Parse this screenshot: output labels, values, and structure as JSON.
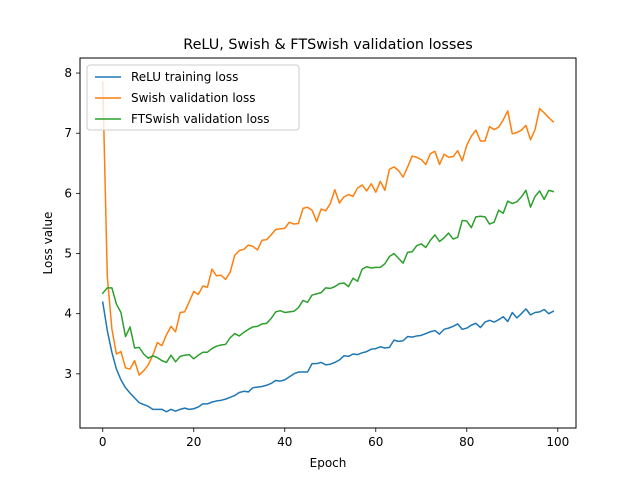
{
  "chart_data": {
    "type": "line",
    "title": "ReLU, Swish & FTSwish validation losses",
    "xlabel": "Epoch",
    "ylabel": "Loss value",
    "xlim": [
      -5,
      104
    ],
    "ylim": [
      2.1,
      8.25
    ],
    "xticks": [
      0,
      20,
      40,
      60,
      80,
      100
    ],
    "yticks": [
      3,
      4,
      5,
      6,
      7,
      8
    ],
    "legend_position": "top-left",
    "grid": false,
    "series": [
      {
        "name": "ReLU training loss",
        "color": "#1f77b4",
        "values": [
          4.19,
          3.72,
          3.36,
          3.08,
          2.9,
          2.77,
          2.68,
          2.6,
          2.52,
          2.49,
          2.46,
          2.41,
          2.41,
          2.41,
          2.37,
          2.41,
          2.38,
          2.41,
          2.43,
          2.41,
          2.42,
          2.45,
          2.5,
          2.5,
          2.53,
          2.55,
          2.56,
          2.58,
          2.61,
          2.64,
          2.69,
          2.71,
          2.7,
          2.77,
          2.78,
          2.79,
          2.81,
          2.84,
          2.89,
          2.88,
          2.9,
          2.95,
          3.0,
          3.03,
          3.03,
          3.03,
          3.17,
          3.17,
          3.19,
          3.15,
          3.16,
          3.19,
          3.23,
          3.3,
          3.29,
          3.33,
          3.32,
          3.35,
          3.37,
          3.41,
          3.42,
          3.45,
          3.43,
          3.44,
          3.56,
          3.54,
          3.55,
          3.62,
          3.61,
          3.63,
          3.64,
          3.67,
          3.7,
          3.72,
          3.66,
          3.74,
          3.76,
          3.79,
          3.83,
          3.74,
          3.76,
          3.81,
          3.84,
          3.77,
          3.86,
          3.89,
          3.86,
          3.9,
          3.95,
          3.87,
          4.02,
          3.93,
          4.0,
          4.08,
          3.98,
          4.02,
          4.03,
          4.07,
          4.0,
          4.04
        ]
      },
      {
        "name": "Swish validation loss",
        "color": "#ff7f0e",
        "values": [
          7.85,
          4.62,
          3.75,
          3.33,
          3.37,
          3.1,
          3.08,
          3.22,
          2.98,
          3.05,
          3.15,
          3.31,
          3.52,
          3.47,
          3.65,
          3.79,
          3.7,
          4.02,
          4.03,
          4.2,
          4.37,
          4.32,
          4.46,
          4.44,
          4.74,
          4.63,
          4.64,
          4.57,
          4.69,
          4.97,
          5.05,
          5.07,
          5.14,
          5.12,
          5.06,
          5.22,
          5.23,
          5.31,
          5.4,
          5.41,
          5.42,
          5.52,
          5.49,
          5.5,
          5.75,
          5.77,
          5.72,
          5.53,
          5.74,
          5.71,
          5.83,
          6.06,
          5.84,
          5.94,
          5.98,
          5.95,
          6.09,
          6.14,
          6.04,
          6.16,
          6.02,
          6.2,
          6.05,
          6.4,
          6.44,
          6.38,
          6.27,
          6.44,
          6.62,
          6.6,
          6.56,
          6.48,
          6.66,
          6.7,
          6.48,
          6.65,
          6.6,
          6.61,
          6.71,
          6.54,
          6.8,
          6.95,
          7.05,
          6.87,
          6.87,
          7.11,
          7.06,
          7.1,
          7.22,
          7.37,
          6.99,
          7.01,
          7.05,
          7.13,
          6.89,
          7.06,
          7.41,
          7.34,
          7.26,
          7.19
        ]
      },
      {
        "name": "FTSwish validation loss",
        "color": "#2ca02c",
        "values": [
          4.34,
          4.43,
          4.43,
          4.16,
          4.02,
          3.62,
          3.78,
          3.43,
          3.44,
          3.33,
          3.26,
          3.3,
          3.27,
          3.22,
          3.19,
          3.31,
          3.2,
          3.29,
          3.31,
          3.32,
          3.25,
          3.31,
          3.36,
          3.36,
          3.42,
          3.46,
          3.48,
          3.49,
          3.6,
          3.67,
          3.63,
          3.69,
          3.74,
          3.78,
          3.79,
          3.83,
          3.84,
          3.92,
          4.03,
          4.05,
          4.02,
          4.03,
          4.04,
          4.1,
          4.22,
          4.19,
          4.31,
          4.33,
          4.35,
          4.43,
          4.42,
          4.45,
          4.5,
          4.51,
          4.45,
          4.59,
          4.54,
          4.74,
          4.78,
          4.76,
          4.77,
          4.77,
          4.83,
          4.95,
          5.0,
          4.92,
          4.84,
          5.02,
          5.03,
          5.13,
          5.16,
          5.1,
          5.22,
          5.31,
          5.2,
          5.26,
          5.34,
          5.24,
          5.27,
          5.55,
          5.54,
          5.43,
          5.61,
          5.62,
          5.61,
          5.49,
          5.52,
          5.72,
          5.67,
          5.87,
          5.83,
          5.86,
          5.94,
          6.05,
          5.77,
          5.95,
          6.04,
          5.9,
          6.05,
          6.03
        ]
      }
    ]
  }
}
